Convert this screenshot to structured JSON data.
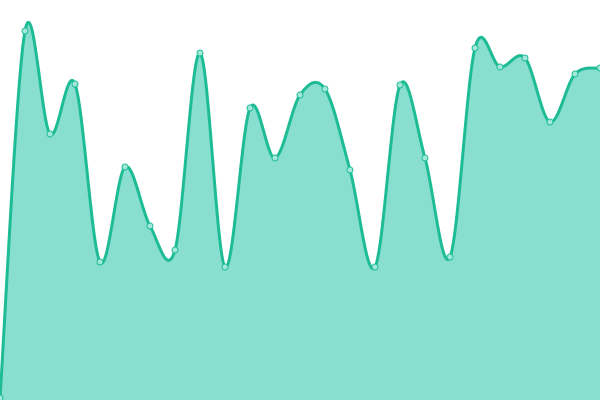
{
  "chart_data": {
    "type": "area",
    "title": "",
    "xlabel": "",
    "ylabel": "",
    "grid": false,
    "legend": "none",
    "smooth": true,
    "x": [
      0,
      1,
      2,
      3,
      4,
      5,
      6,
      7,
      8,
      9,
      10,
      11,
      12,
      13,
      14,
      15,
      16,
      17,
      18,
      19,
      20,
      21,
      22,
      23,
      24
    ],
    "ylim": [
      0,
      400
    ],
    "series": [
      {
        "values": [
          2,
          369,
          266,
          316,
          138,
          233,
          174,
          150,
          347,
          133,
          292,
          242,
          305,
          311,
          230,
          133,
          315,
          242,
          143,
          352,
          333,
          342,
          278,
          326,
          332
        ]
      }
    ],
    "colors": {
      "line": "#1dbc94",
      "fill": "#89dfcf",
      "marker_fill": "#a3e8da"
    }
  }
}
